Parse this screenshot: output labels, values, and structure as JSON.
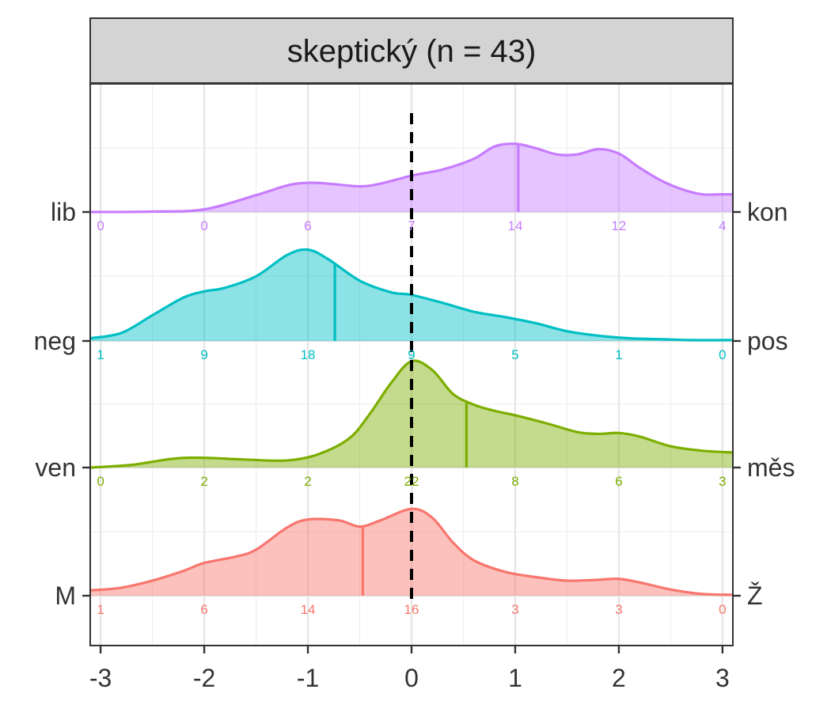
{
  "chart_data": {
    "type": "ridgeline",
    "facet_title": "skeptický (n = 43)",
    "x_range": [
      -3.1,
      3.1
    ],
    "x_ticks": [
      -3,
      -2,
      -1,
      0,
      1,
      2,
      3
    ],
    "x_tick_labels": [
      "-3",
      "-2",
      "-1",
      "0",
      "1",
      "2",
      "3"
    ],
    "reference_line_x": 0,
    "count_positions": [
      -3,
      -2,
      -1,
      0,
      1,
      2,
      3
    ],
    "rows": [
      {
        "left_label": "lib",
        "right_label": "kon",
        "color": "#C77CFF",
        "mean": 1.03,
        "counts": [
          0,
          0,
          6,
          7,
          14,
          12,
          4
        ],
        "density_x": [
          -3.1,
          -2.5,
          -2.0,
          -1.5,
          -1.2,
          -1.0,
          -0.8,
          -0.5,
          -0.3,
          0.0,
          0.3,
          0.6,
          0.8,
          1.0,
          1.2,
          1.4,
          1.6,
          1.8,
          2.0,
          2.2,
          2.4,
          2.6,
          2.8,
          3.0,
          3.1
        ],
        "density_y": [
          0.0,
          0.005,
          0.03,
          0.19,
          0.3,
          0.33,
          0.32,
          0.29,
          0.32,
          0.41,
          0.48,
          0.6,
          0.74,
          0.77,
          0.72,
          0.65,
          0.65,
          0.71,
          0.66,
          0.5,
          0.36,
          0.26,
          0.2,
          0.2,
          0.2
        ]
      },
      {
        "left_label": "neg",
        "right_label": "pos",
        "color": "#00BFC4",
        "mean": -0.74,
        "counts": [
          1,
          9,
          18,
          9,
          5,
          1,
          0
        ],
        "density_x": [
          -3.1,
          -2.8,
          -2.5,
          -2.2,
          -2.0,
          -1.8,
          -1.5,
          -1.2,
          -1.0,
          -0.8,
          -0.5,
          -0.2,
          0.0,
          0.3,
          0.6,
          0.9,
          1.2,
          1.5,
          1.8,
          2.1,
          2.4,
          2.7,
          3.0,
          3.1
        ],
        "density_y": [
          0.03,
          0.09,
          0.29,
          0.49,
          0.56,
          0.6,
          0.73,
          0.97,
          1.03,
          0.92,
          0.68,
          0.55,
          0.52,
          0.43,
          0.33,
          0.27,
          0.2,
          0.11,
          0.06,
          0.03,
          0.02,
          0.01,
          0.01,
          0.01
        ]
      },
      {
        "left_label": "ven",
        "right_label": "měs",
        "color": "#7CAE00",
        "mean": 0.53,
        "counts": [
          0,
          2,
          2,
          22,
          8,
          6,
          3
        ],
        "density_x": [
          -3.1,
          -2.7,
          -2.3,
          -2.0,
          -1.6,
          -1.2,
          -0.9,
          -0.6,
          -0.4,
          -0.2,
          0.0,
          0.2,
          0.4,
          0.6,
          0.8,
          1.0,
          1.3,
          1.6,
          1.8,
          2.0,
          2.2,
          2.5,
          2.8,
          3.1
        ],
        "density_y": [
          0.0,
          0.03,
          0.1,
          0.11,
          0.09,
          0.08,
          0.15,
          0.33,
          0.61,
          0.95,
          1.2,
          1.1,
          0.83,
          0.71,
          0.64,
          0.59,
          0.5,
          0.4,
          0.38,
          0.39,
          0.35,
          0.24,
          0.19,
          0.17
        ]
      },
      {
        "left_label": "M",
        "right_label": "Ž",
        "color": "#F8766D",
        "mean": -0.47,
        "counts": [
          1,
          6,
          14,
          16,
          3,
          3,
          0
        ],
        "density_x": [
          -3.1,
          -2.8,
          -2.5,
          -2.2,
          -2.0,
          -1.7,
          -1.5,
          -1.2,
          -1.0,
          -0.7,
          -0.5,
          -0.3,
          0.0,
          0.2,
          0.4,
          0.6,
          0.9,
          1.2,
          1.5,
          1.8,
          2.0,
          2.2,
          2.5,
          2.8,
          3.1
        ],
        "density_y": [
          0.06,
          0.09,
          0.17,
          0.28,
          0.37,
          0.44,
          0.52,
          0.77,
          0.86,
          0.85,
          0.78,
          0.85,
          0.98,
          0.88,
          0.6,
          0.4,
          0.27,
          0.21,
          0.17,
          0.18,
          0.19,
          0.15,
          0.07,
          0.02,
          0.01
        ]
      }
    ]
  }
}
